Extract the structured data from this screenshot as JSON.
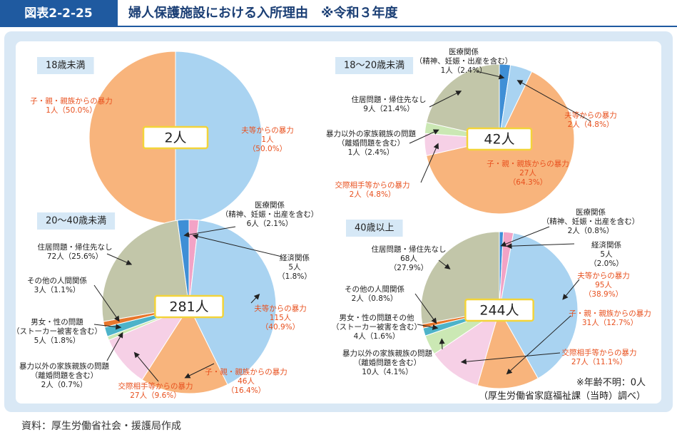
{
  "header": {
    "label": "図表2-2-25",
    "title": "婦人保護施設における入所理由　※令和３年度"
  },
  "chart_data": [
    {
      "type": "pie",
      "title": "18歳未満",
      "center_label": "2人",
      "categories": [
        [
          "夫等からの暴力"
        ],
        [
          "子・親・親族からの暴力"
        ]
      ],
      "values": [
        1,
        1
      ],
      "value_labels": [
        "1人",
        "1人"
      ],
      "percent_labels": [
        "（50.0%）",
        "（50.0%）"
      ],
      "colors": [
        "#a9d3f1",
        "#f8b47c"
      ],
      "label_colors": [
        "#e8501e",
        "#e8501e"
      ]
    },
    {
      "type": "pie",
      "title": "18～20歳未満",
      "center_label": "42人",
      "categories": [
        [
          "医療関係",
          "（精神、妊娠・出産を含む）"
        ],
        [
          "夫等からの暴力"
        ],
        [
          "子・親・親族からの暴力"
        ],
        [
          "交際相手等からの暴力"
        ],
        [
          "暴力以外の家族親族の問題",
          "（離婚問題を含む）"
        ],
        [
          "住居問題・帰住先なし"
        ]
      ],
      "values": [
        1,
        2,
        27,
        2,
        1,
        9
      ],
      "value_labels": [
        "1人",
        "2人",
        "27人",
        "2人",
        "1人",
        "9人"
      ],
      "percent_labels": [
        "（2.4%）",
        "（4.8%）",
        "（64.3%）",
        "（4.8%）",
        "（2.4%）",
        "（21.4%）"
      ],
      "colors": [
        "#3f8fd6",
        "#a9d3f1",
        "#f8b47c",
        "#f6d0e6",
        "#cbe8b4",
        "#c2c6a9"
      ],
      "label_colors": [
        "#222222",
        "#e8501e",
        "#e8501e",
        "#e8501e",
        "#222222",
        "#222222"
      ]
    },
    {
      "type": "pie",
      "title": "20～40歳未満",
      "center_label": "281人",
      "categories": [
        [
          "経済関係"
        ],
        [
          "夫等からの暴力"
        ],
        [
          "子・親・親族からの暴力"
        ],
        [
          "交際相手等からの暴力"
        ],
        [
          "暴力以外の家族親族の問題",
          "（離婚問題を含む）"
        ],
        [
          "男女・性の問題",
          "（ストーカー被害を含む）"
        ],
        [
          "その他の人間関係"
        ],
        [
          "住居問題・帰住先なし"
        ],
        [
          "医療関係",
          "（精神、妊娠・出産を含む）"
        ]
      ],
      "values": [
        5,
        115,
        46,
        27,
        2,
        5,
        3,
        72,
        6
      ],
      "value_labels": [
        "5人",
        "115人",
        "46人",
        "27人",
        "2人",
        "5人",
        "3人",
        "72人",
        "6人"
      ],
      "percent_labels": [
        "（1.8%）",
        "（40.9%）",
        "（16.4%）",
        "（9.6%）",
        "（0.7%）",
        "（1.8%）",
        "（1.1%）",
        "（25.6%）",
        "（2.1%）"
      ],
      "colors": [
        "#f2a3c6",
        "#a9d3f1",
        "#f8b47c",
        "#f6d0e6",
        "#cbe8b4",
        "#4db3c9",
        "#e8762b",
        "#c2c6a9",
        "#3f8fd6"
      ],
      "label_colors": [
        "#222222",
        "#e8501e",
        "#e8501e",
        "#e8501e",
        "#222222",
        "#222222",
        "#222222",
        "#222222",
        "#222222"
      ]
    },
    {
      "type": "pie",
      "title": "40歳以上",
      "center_label": "244人",
      "categories": [
        [
          "医療関係",
          "（精神、妊娠・出産を含む）"
        ],
        [
          "経済関係"
        ],
        [
          "夫等からの暴力"
        ],
        [
          "子・親・親族からの暴力"
        ],
        [
          "交際相手等からの暴力"
        ],
        [
          "暴力以外の家族親族の問題",
          "（離婚問題を含む）"
        ],
        [
          "男女・性の問題その他",
          "（ストーカー被害を含む）"
        ],
        [
          "その他の人間関係"
        ],
        [
          "住居問題・帰住先なし"
        ]
      ],
      "values": [
        2,
        5,
        95,
        31,
        27,
        10,
        4,
        2,
        68
      ],
      "value_labels": [
        "2人",
        "5人",
        "95人",
        "31人",
        "27人",
        "10人",
        "4人",
        "2人",
        "68人"
      ],
      "percent_labels": [
        "（0.8%）",
        "（2.0%）",
        "（38.9%）",
        "（12.7%）",
        "（11.1%）",
        "（4.1%）",
        "（1.6%）",
        "（0.8%）",
        "（27.9%）"
      ],
      "colors": [
        "#3f8fd6",
        "#f2a3c6",
        "#a9d3f1",
        "#f8b47c",
        "#f6d0e6",
        "#cbe8b4",
        "#4db3c9",
        "#e8762b",
        "#c2c6a9"
      ],
      "label_colors": [
        "#222222",
        "#222222",
        "#e8501e",
        "#e8501e",
        "#e8501e",
        "#222222",
        "#222222",
        "#222222",
        "#222222"
      ]
    }
  ],
  "notes": [
    "※年齢不明：0人",
    "（厚生労働省家庭福祉課（当時）調べ）"
  ],
  "source": "資料：厚生労働省社会・援護局作成"
}
